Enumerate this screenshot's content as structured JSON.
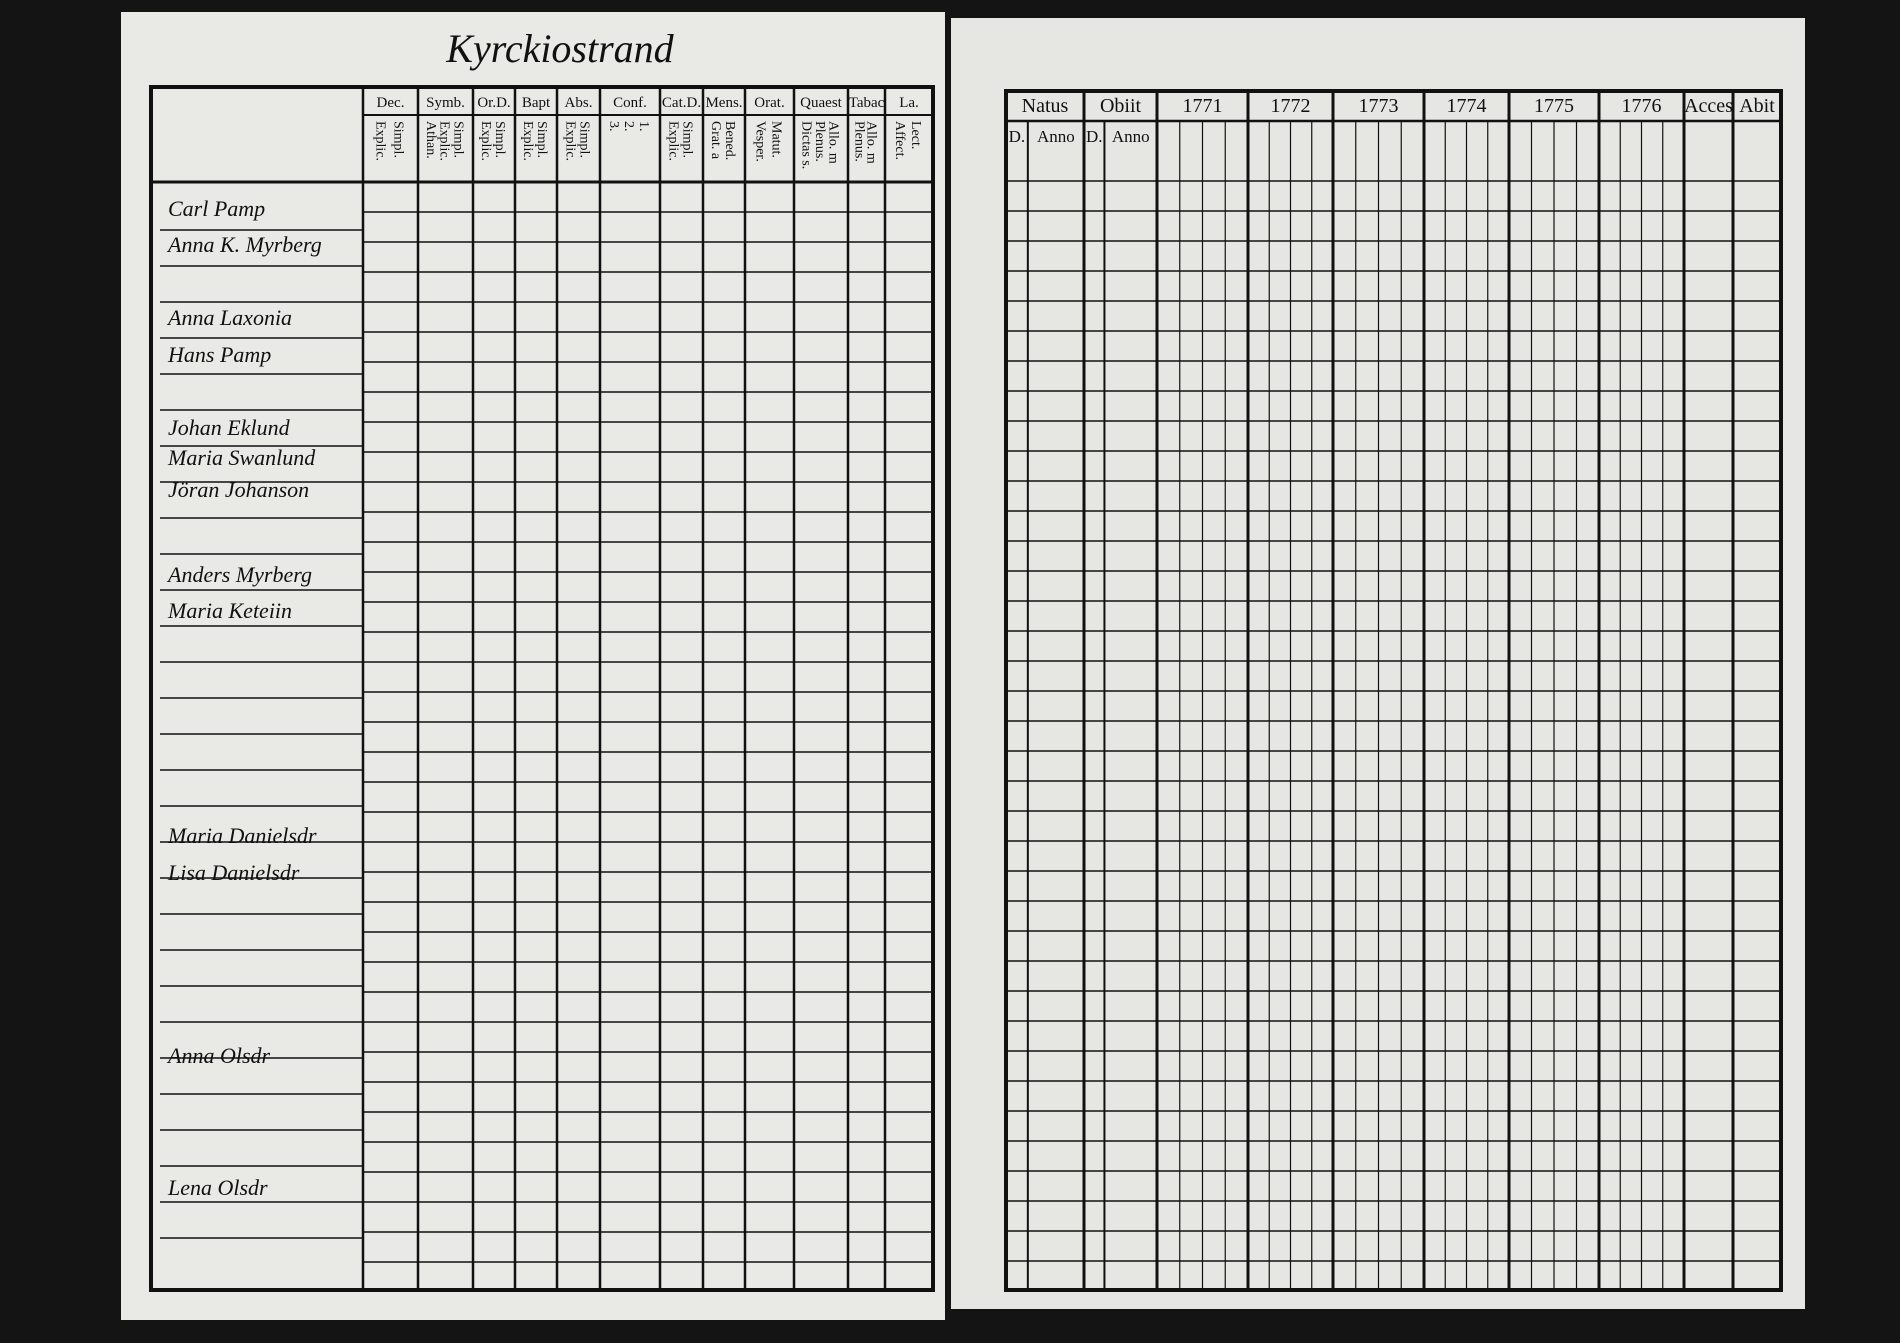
{
  "title": "Kyrckiostrand",
  "left_page": {
    "columns": [
      {
        "label": "Dec.",
        "sub": [
          "Explic.",
          "Simpl."
        ]
      },
      {
        "label": "Symb.",
        "sub": [
          "Athan.",
          "Explic.",
          "Simpl."
        ]
      },
      {
        "label": "Or.D.",
        "sub": [
          "Explic.",
          "Simpl."
        ]
      },
      {
        "label": "Bapt",
        "sub": [
          "Explic.",
          "Simpl."
        ]
      },
      {
        "label": "Abs.",
        "sub": [
          "Explic.",
          "Simpl."
        ]
      },
      {
        "label": "Conf.",
        "sub": [
          "3.",
          "2.",
          "1."
        ]
      },
      {
        "label": "Cat.D.",
        "sub": [
          "Explic.",
          "Simpl."
        ]
      },
      {
        "label": "Mens.",
        "sub": [
          "Grat. a",
          "Bened."
        ]
      },
      {
        "label": "Orat.",
        "sub": [
          "Vesper.",
          "Matut."
        ]
      },
      {
        "label": "Quaest",
        "sub": [
          "Dictas s.",
          "Plenus.",
          "Allo. m"
        ]
      },
      {
        "label": "Tabac",
        "sub": [
          "Plenus.",
          "Allo. m"
        ]
      },
      {
        "label": "La.",
        "sub": [
          "Affect.",
          "Lect."
        ]
      }
    ],
    "names": [
      "Carl Pamp",
      "Anna K. Myrberg",
      "Anna Laxonia",
      "Hans Pamp",
      "Johan Eklund",
      "Maria Swanlund",
      "Jöran Johanson",
      "Anders Myrberg",
      "Maria Keteiin",
      "Maria Danielsdr",
      "Lisa Danielsdr",
      "Anna Olsdr",
      "Lena Olsdr"
    ]
  },
  "right_page": {
    "columns": [
      {
        "label": "Natus",
        "sub": [
          "D.",
          "Anno"
        ]
      },
      {
        "label": "Obiit",
        "sub": [
          "D.",
          "Anno"
        ]
      },
      {
        "label": "1771",
        "sub": []
      },
      {
        "label": "1772",
        "sub": []
      },
      {
        "label": "1773",
        "sub": []
      },
      {
        "label": "1774",
        "sub": []
      },
      {
        "label": "1775",
        "sub": []
      },
      {
        "label": "1776",
        "sub": []
      },
      {
        "label": "Acces",
        "sub": []
      },
      {
        "label": "Abit",
        "sub": []
      }
    ]
  }
}
